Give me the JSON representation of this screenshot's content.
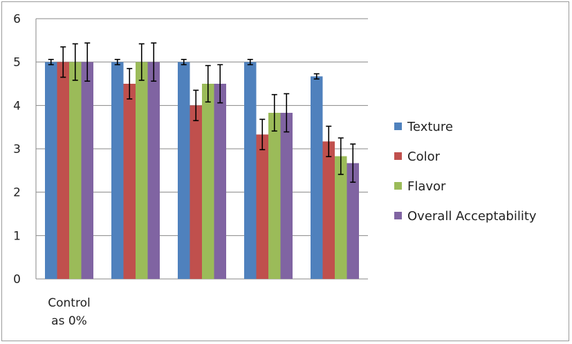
{
  "chart_data": {
    "type": "bar",
    "title": "",
    "xlabel": "",
    "ylabel": "",
    "ylim": [
      0,
      6
    ],
    "yticks": [
      0,
      1,
      2,
      3,
      4,
      5,
      6
    ],
    "grid": true,
    "legend_position": "right",
    "categories": [
      "Control\nas 0%",
      "",
      "",
      "",
      ""
    ],
    "series": [
      {
        "name": "Texture",
        "color": "#4f81bd",
        "values": [
          5.0,
          5.0,
          5.0,
          5.0,
          4.67
        ],
        "errors": [
          0.06,
          0.06,
          0.06,
          0.06,
          0.06
        ]
      },
      {
        "name": "Color",
        "color": "#c0504d",
        "values": [
          5.0,
          4.5,
          4.0,
          3.33,
          3.17
        ],
        "errors": [
          0.35,
          0.35,
          0.35,
          0.35,
          0.35
        ]
      },
      {
        "name": "Flavor",
        "color": "#9bbb59",
        "values": [
          5.0,
          5.0,
          4.5,
          3.83,
          2.83
        ],
        "errors": [
          0.42,
          0.42,
          0.42,
          0.42,
          0.42
        ]
      },
      {
        "name": "Overall Acceptability",
        "color": "#8064a2",
        "values": [
          5.0,
          5.0,
          4.5,
          3.83,
          2.67
        ],
        "errors": [
          0.44,
          0.44,
          0.44,
          0.44,
          0.44
        ]
      }
    ]
  }
}
